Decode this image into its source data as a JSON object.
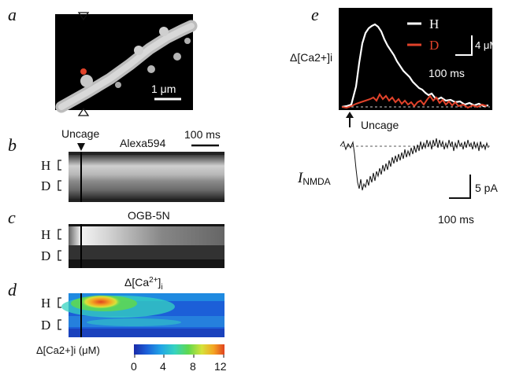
{
  "panels": {
    "a": {
      "label": "a",
      "scalebar": "1 μm"
    },
    "b": {
      "label": "b",
      "uncage": "Uncage",
      "dye": "Alexa594",
      "scalebar": "100 ms",
      "rows": [
        "H",
        "D"
      ]
    },
    "c": {
      "label": "c",
      "dye": "OGB-5N",
      "rows": [
        "H",
        "D"
      ]
    },
    "d": {
      "label": "d",
      "title_main": "Δ[Ca",
      "title_sup": "2+",
      "title_close": "]",
      "title_sub": "i",
      "rows": [
        "H",
        "D"
      ],
      "colorbar_label": "Δ[Ca2+]i (μM)",
      "colorbar_ticks": [
        "0",
        "4",
        "8",
        "12"
      ],
      "colors": {
        "colormap": [
          "#1a2aa8",
          "#1c5fd8",
          "#22a6e6",
          "#36d3c0",
          "#5fd84e",
          "#d6e23a",
          "#f4a423",
          "#e0431f"
        ]
      }
    },
    "e": {
      "label": "e",
      "ca_label": "Δ[Ca2+]i",
      "legend": [
        {
          "name": "H",
          "color": "#ffffff"
        },
        {
          "name": "D",
          "color": "#e0422a"
        }
      ],
      "ca_scale_y": "4 μM",
      "ca_scale_x": "100 ms",
      "uncage": "Uncage",
      "current_label": "I",
      "current_sub": "NMDA",
      "cur_scale_y": "5 pA",
      "cur_scale_x": "100 ms"
    }
  }
}
